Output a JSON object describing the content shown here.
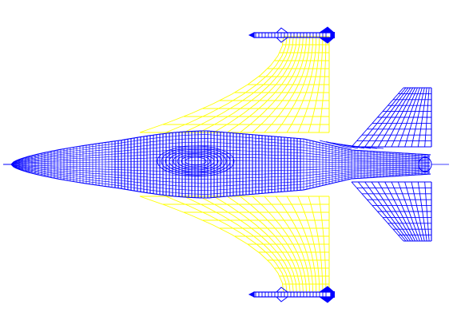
{
  "scene": {
    "subject": "jet-fighter-wireframe",
    "view": "top",
    "symmetric": true
  },
  "colors": {
    "background": "#ffffff",
    "fuselage": "#0000ff",
    "wing": "#ffff00",
    "stabilizer": "#0000ff",
    "missile": "#0000ff"
  },
  "components": {
    "fuselage": {
      "mesh": "dense-wireframe"
    },
    "wings": {
      "mesh": "wireframe-grid"
    },
    "horizontal_stabilizers": {
      "mesh": "wireframe-grid"
    },
    "missiles": {
      "count": 2,
      "location": "wingtips"
    }
  }
}
